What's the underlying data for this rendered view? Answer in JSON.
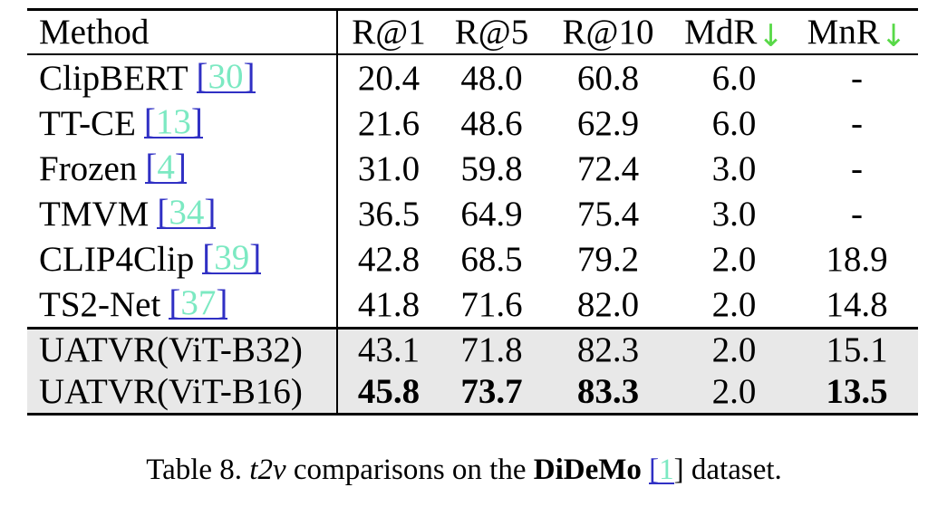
{
  "colors": {
    "link_bracket": "#3030c4",
    "cite_number_mint": "#7ce9c2",
    "arrow_green": "#58d948",
    "row_highlight": "#e8e8e8",
    "rule_black": "#000000"
  },
  "table": {
    "columns": [
      "Method",
      "R@1",
      "R@5",
      "R@10",
      "MdR",
      "MnR"
    ],
    "arrow_columns": [
      4,
      5
    ],
    "down_arrow": "↓",
    "bracket_open": "[",
    "bracket_close": "]",
    "rows": [
      {
        "method": "ClipBERT",
        "cite": "30",
        "values": [
          "20.4",
          "48.0",
          "60.8",
          "6.0",
          "-"
        ],
        "highlight": false,
        "bold": []
      },
      {
        "method": "TT-CE",
        "cite": "13",
        "values": [
          "21.6",
          "48.6",
          "62.9",
          "6.0",
          "-"
        ],
        "highlight": false,
        "bold": []
      },
      {
        "method": "Frozen",
        "cite": "4",
        "values": [
          "31.0",
          "59.8",
          "72.4",
          "3.0",
          "-"
        ],
        "highlight": false,
        "bold": []
      },
      {
        "method": "TMVM",
        "cite": "34",
        "values": [
          "36.5",
          "64.9",
          "75.4",
          "3.0",
          "-"
        ],
        "highlight": false,
        "bold": []
      },
      {
        "method": "CLIP4Clip",
        "cite": "39",
        "values": [
          "42.8",
          "68.5",
          "79.2",
          "2.0",
          "18.9"
        ],
        "highlight": false,
        "bold": []
      },
      {
        "method": "TS2-Net",
        "cite": "37",
        "values": [
          "41.8",
          "71.6",
          "82.0",
          "2.0",
          "14.8"
        ],
        "highlight": false,
        "bold": []
      },
      {
        "method": "UATVR(ViT-B32)",
        "cite": null,
        "values": [
          "43.1",
          "71.8",
          "82.3",
          "2.0",
          "15.1"
        ],
        "highlight": true,
        "bold": []
      },
      {
        "method": "UATVR(ViT-B16)",
        "cite": null,
        "values": [
          "45.8",
          "73.7",
          "83.3",
          "2.0",
          "13.5"
        ],
        "highlight": true,
        "bold": [
          0,
          1,
          2,
          4
        ]
      }
    ]
  },
  "caption": {
    "label": "Table 8.",
    "italic_term": "t2v",
    "middle": "comparisons on the",
    "dataset": "DiDeMo",
    "cite": "1",
    "suffix": "dataset."
  }
}
